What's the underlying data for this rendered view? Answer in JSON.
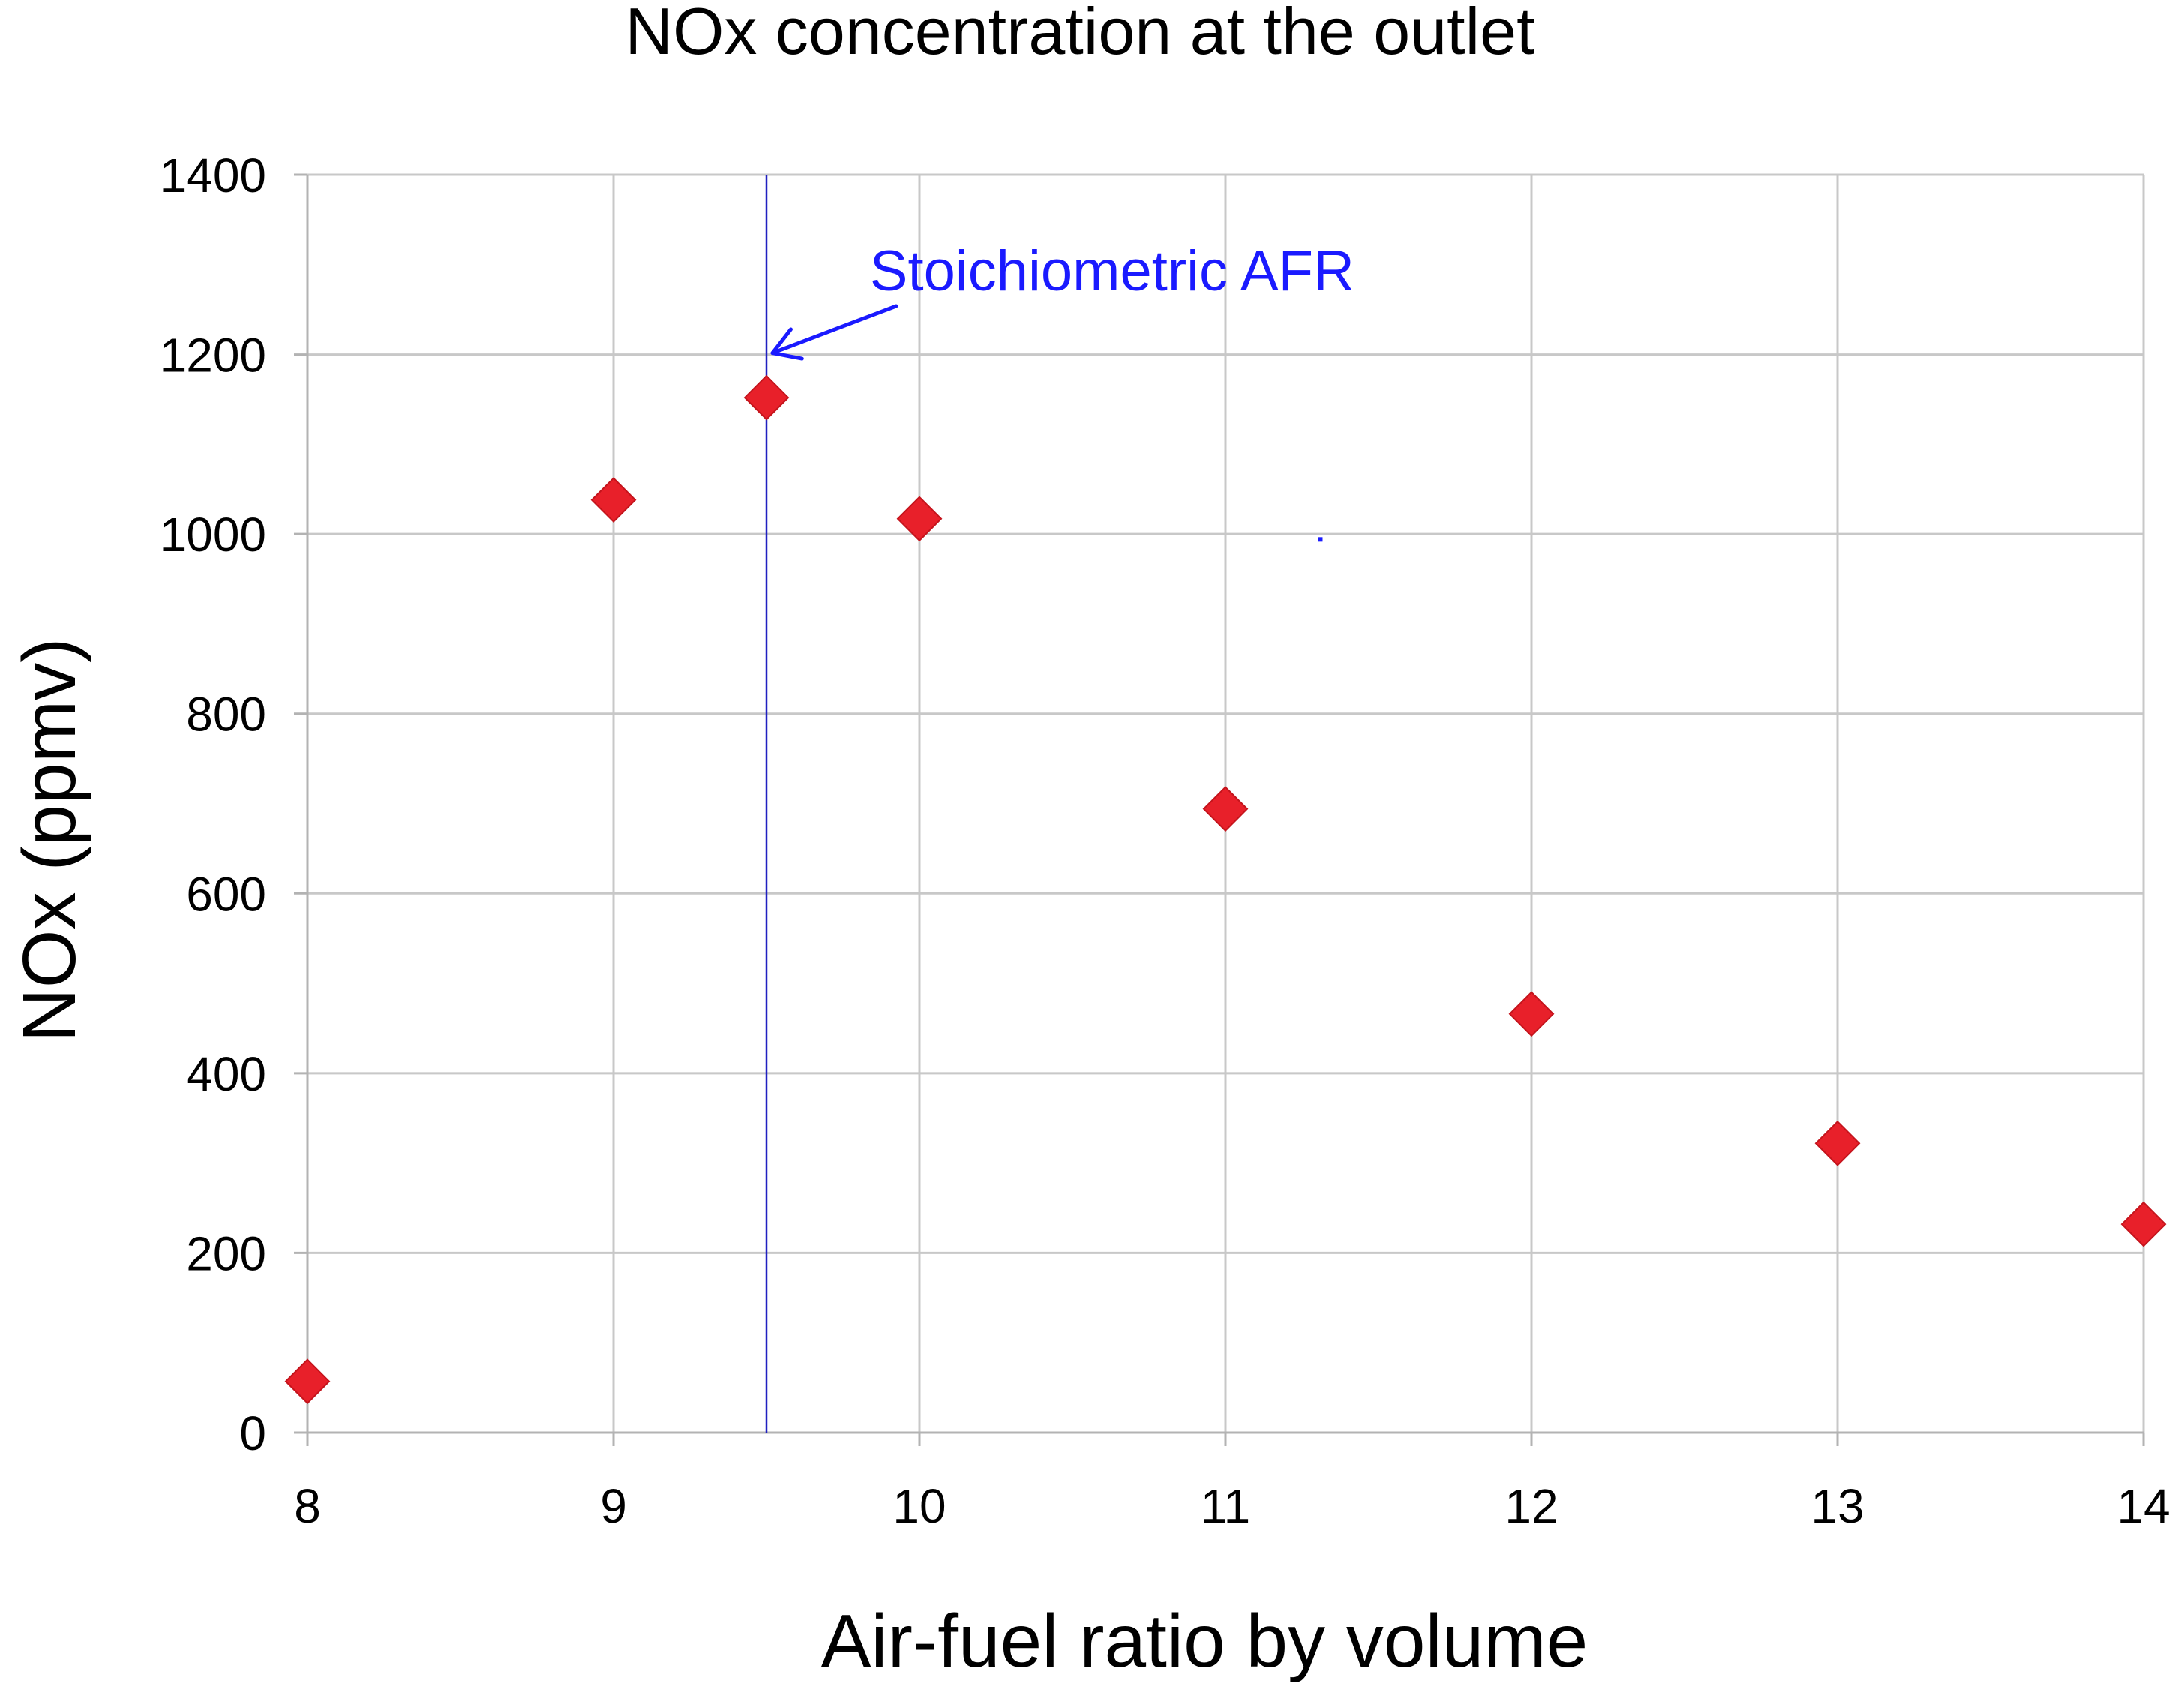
{
  "chart_data": {
    "type": "scatter",
    "title": "NOx concentration at the outlet",
    "xlabel": "Air-fuel ratio by volume",
    "ylabel": "NOx (ppmv)",
    "xlim": [
      8,
      14
    ],
    "ylim": [
      0,
      1400
    ],
    "grid": true,
    "x_ticks": [
      8,
      9,
      10,
      11,
      12,
      13,
      14
    ],
    "y_ticks": [
      0,
      200,
      400,
      600,
      800,
      1000,
      1200,
      1400
    ],
    "series": [
      {
        "name": "NOx",
        "color": "#e8202a",
        "marker": "diamond",
        "x": [
          8,
          9,
          9.5,
          10,
          11,
          12,
          13,
          14
        ],
        "y": [
          57,
          1038,
          1152,
          1017,
          694,
          466,
          322,
          232
        ]
      }
    ],
    "reference_line": {
      "x": 9.5,
      "color": "#2020c0"
    },
    "annotation": {
      "text": "Stoichiometric  AFR",
      "color": "#1a1aff",
      "target_x": 9.5,
      "target_y": 1205,
      "label_x": 9.85,
      "label_y": 1290
    },
    "stray_mark": {
      "x": 11.31,
      "y": 994,
      "color": "#1a1aff"
    }
  }
}
